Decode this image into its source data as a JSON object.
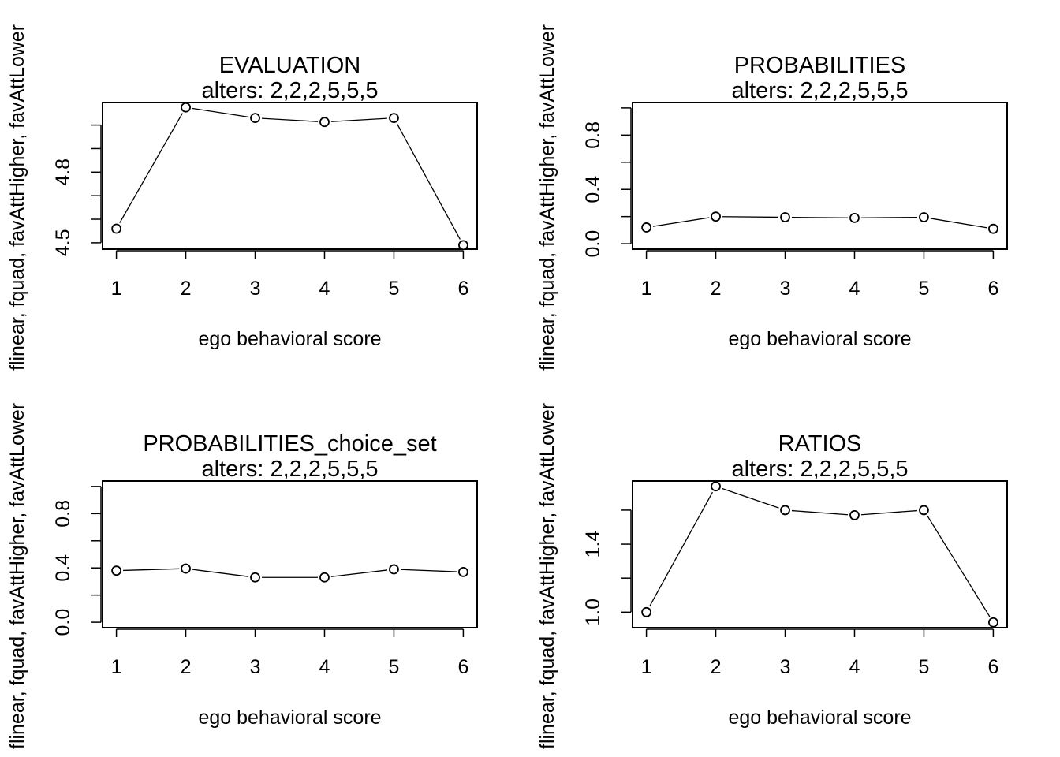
{
  "chart_data": [
    {
      "type": "line",
      "title": "EVALUATION",
      "subtitle": "alters: 2,2,2,5,5,5",
      "xlabel": "ego behavioral score",
      "ylabel": "flinear, fquad, favAttHigher, favAttLower",
      "x": [
        1,
        2,
        3,
        4,
        5,
        6
      ],
      "values": [
        4.56,
        5.075,
        5.03,
        5.013,
        5.03,
        4.49
      ],
      "xlim": [
        0.8,
        6.2
      ],
      "ylim": [
        4.4728,
        5.0958
      ],
      "yticks": [
        4.5,
        4.6,
        4.7,
        4.8,
        4.9,
        5.0
      ],
      "ytick_labels": [
        "4.5",
        "",
        "",
        "4.8",
        "",
        ""
      ],
      "xticks": [
        1,
        2,
        3,
        4,
        5,
        6
      ],
      "grid": false
    },
    {
      "type": "line",
      "title": "PROBABILITIES",
      "subtitle": "alters: 2,2,2,5,5,5",
      "xlabel": "ego behavioral score",
      "ylabel": "flinear, fquad, favAttHigher, favAttLower",
      "x": [
        1,
        2,
        3,
        4,
        5,
        6
      ],
      "values": [
        0.12,
        0.2,
        0.195,
        0.19,
        0.195,
        0.11
      ],
      "xlim": [
        0.8,
        6.2
      ],
      "ylim": [
        -0.04,
        1.04
      ],
      "yticks": [
        0.0,
        0.2,
        0.4,
        0.6,
        0.8,
        1.0
      ],
      "ytick_labels": [
        "0.0",
        "",
        "0.4",
        "",
        "0.8",
        ""
      ],
      "xticks": [
        1,
        2,
        3,
        4,
        5,
        6
      ],
      "grid": false
    },
    {
      "type": "line",
      "title": "PROBABILITIES_choice_set",
      "subtitle": "alters: 2,2,2,5,5,5",
      "xlabel": "ego behavioral score",
      "ylabel": "flinear, fquad, favAttHigher, favAttLower",
      "x": [
        1,
        2,
        3,
        4,
        5,
        6
      ],
      "values": [
        0.38,
        0.395,
        0.33,
        0.33,
        0.39,
        0.37
      ],
      "xlim": [
        0.8,
        6.2
      ],
      "ylim": [
        -0.04,
        1.04
      ],
      "yticks": [
        0.0,
        0.2,
        0.4,
        0.6,
        0.8,
        1.0
      ],
      "ytick_labels": [
        "0.0",
        "",
        "0.4",
        "",
        "0.8",
        ""
      ],
      "xticks": [
        1,
        2,
        3,
        4,
        5,
        6
      ],
      "grid": false
    },
    {
      "type": "line",
      "title": "RATIOS",
      "subtitle": "alters: 2,2,2,5,5,5",
      "xlabel": "ego behavioral score",
      "ylabel": "flinear, fquad, favAttHigher, favAttLower",
      "x": [
        1,
        2,
        3,
        4,
        5,
        6
      ],
      "values": [
        1.0,
        1.74,
        1.6,
        1.57,
        1.6,
        0.94
      ],
      "xlim": [
        0.8,
        6.2
      ],
      "ylim": [
        0.9088,
        1.7712
      ],
      "yticks": [
        1.0,
        1.2,
        1.4,
        1.6
      ],
      "ytick_labels": [
        "1.0",
        "",
        "1.4",
        ""
      ],
      "xticks": [
        1,
        2,
        3,
        4,
        5,
        6
      ],
      "grid": false
    }
  ]
}
